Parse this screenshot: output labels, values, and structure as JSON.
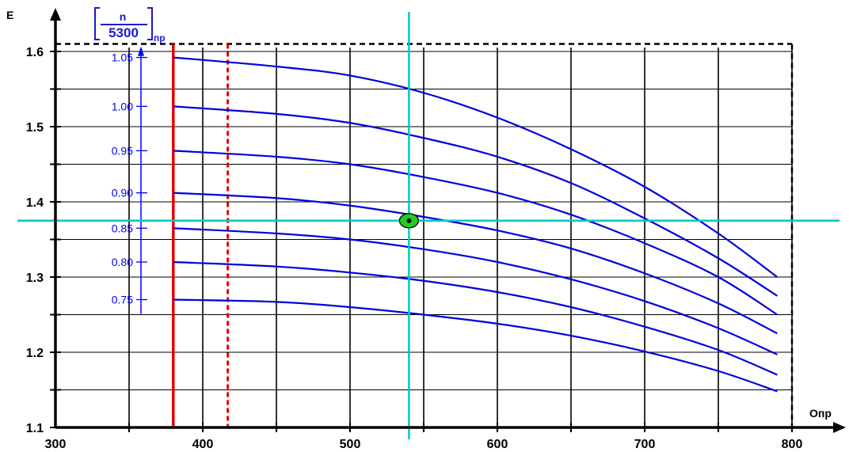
{
  "chart_data": {
    "type": "line",
    "xlabel": "Опр",
    "ylabel": "E",
    "xlim": [
      300,
      800
    ],
    "ylim": [
      1.1,
      1.6
    ],
    "x_ticks": [
      "300",
      "400",
      "500",
      "600",
      "700",
      "800"
    ],
    "y_ticks": [
      "1.1",
      "1.2",
      "1.3",
      "1.4",
      "1.5",
      "1.6"
    ],
    "grid": true,
    "parameter_label": {
      "numerator": "n",
      "denominator": "5300",
      "subscript": "пр"
    },
    "series": [
      {
        "name": "1.05",
        "x": [
          380,
          450,
          500,
          550,
          600,
          650,
          700,
          750,
          790
        ],
        "values": [
          1.592,
          1.58,
          1.568,
          1.545,
          1.512,
          1.47,
          1.42,
          1.358,
          1.3
        ]
      },
      {
        "name": "1.00",
        "x": [
          380,
          450,
          500,
          550,
          600,
          650,
          700,
          750,
          790
        ],
        "values": [
          1.527,
          1.517,
          1.505,
          1.485,
          1.46,
          1.425,
          1.378,
          1.325,
          1.275
        ]
      },
      {
        "name": "0.95",
        "x": [
          380,
          450,
          500,
          550,
          600,
          650,
          700,
          750,
          790
        ],
        "values": [
          1.468,
          1.46,
          1.45,
          1.433,
          1.412,
          1.383,
          1.345,
          1.3,
          1.25
        ]
      },
      {
        "name": "0.90",
        "x": [
          380,
          450,
          500,
          550,
          600,
          650,
          700,
          750,
          790
        ],
        "values": [
          1.412,
          1.405,
          1.395,
          1.38,
          1.362,
          1.338,
          1.305,
          1.265,
          1.225
        ]
      },
      {
        "name": "0.85",
        "x": [
          380,
          450,
          500,
          550,
          600,
          650,
          700,
          750,
          790
        ],
        "values": [
          1.365,
          1.358,
          1.35,
          1.337,
          1.32,
          1.297,
          1.268,
          1.232,
          1.197
        ]
      },
      {
        "name": "0.80",
        "x": [
          380,
          450,
          500,
          550,
          600,
          650,
          700,
          750,
          790
        ],
        "values": [
          1.32,
          1.314,
          1.306,
          1.295,
          1.28,
          1.26,
          1.234,
          1.203,
          1.17
        ]
      },
      {
        "name": "0.75",
        "x": [
          380,
          450,
          500,
          550,
          600,
          650,
          700,
          750,
          790
        ],
        "values": [
          1.27,
          1.267,
          1.26,
          1.25,
          1.238,
          1.222,
          1.201,
          1.175,
          1.148
        ]
      }
    ],
    "reference_lines": {
      "red_solid_x": 380,
      "red_dashed_x": 417,
      "cyan_x": 540,
      "cyan_y": 1.375,
      "boundary_x": 800,
      "boundary_y": 1.61
    },
    "operating_point": {
      "x": 540,
      "y": 1.375
    },
    "colors": {
      "curves": "#0000dd",
      "red_limit": "#e00000",
      "cyan": "#00c8c8",
      "point": "#22cc22",
      "ratio_labels": "#0000ff"
    }
  }
}
